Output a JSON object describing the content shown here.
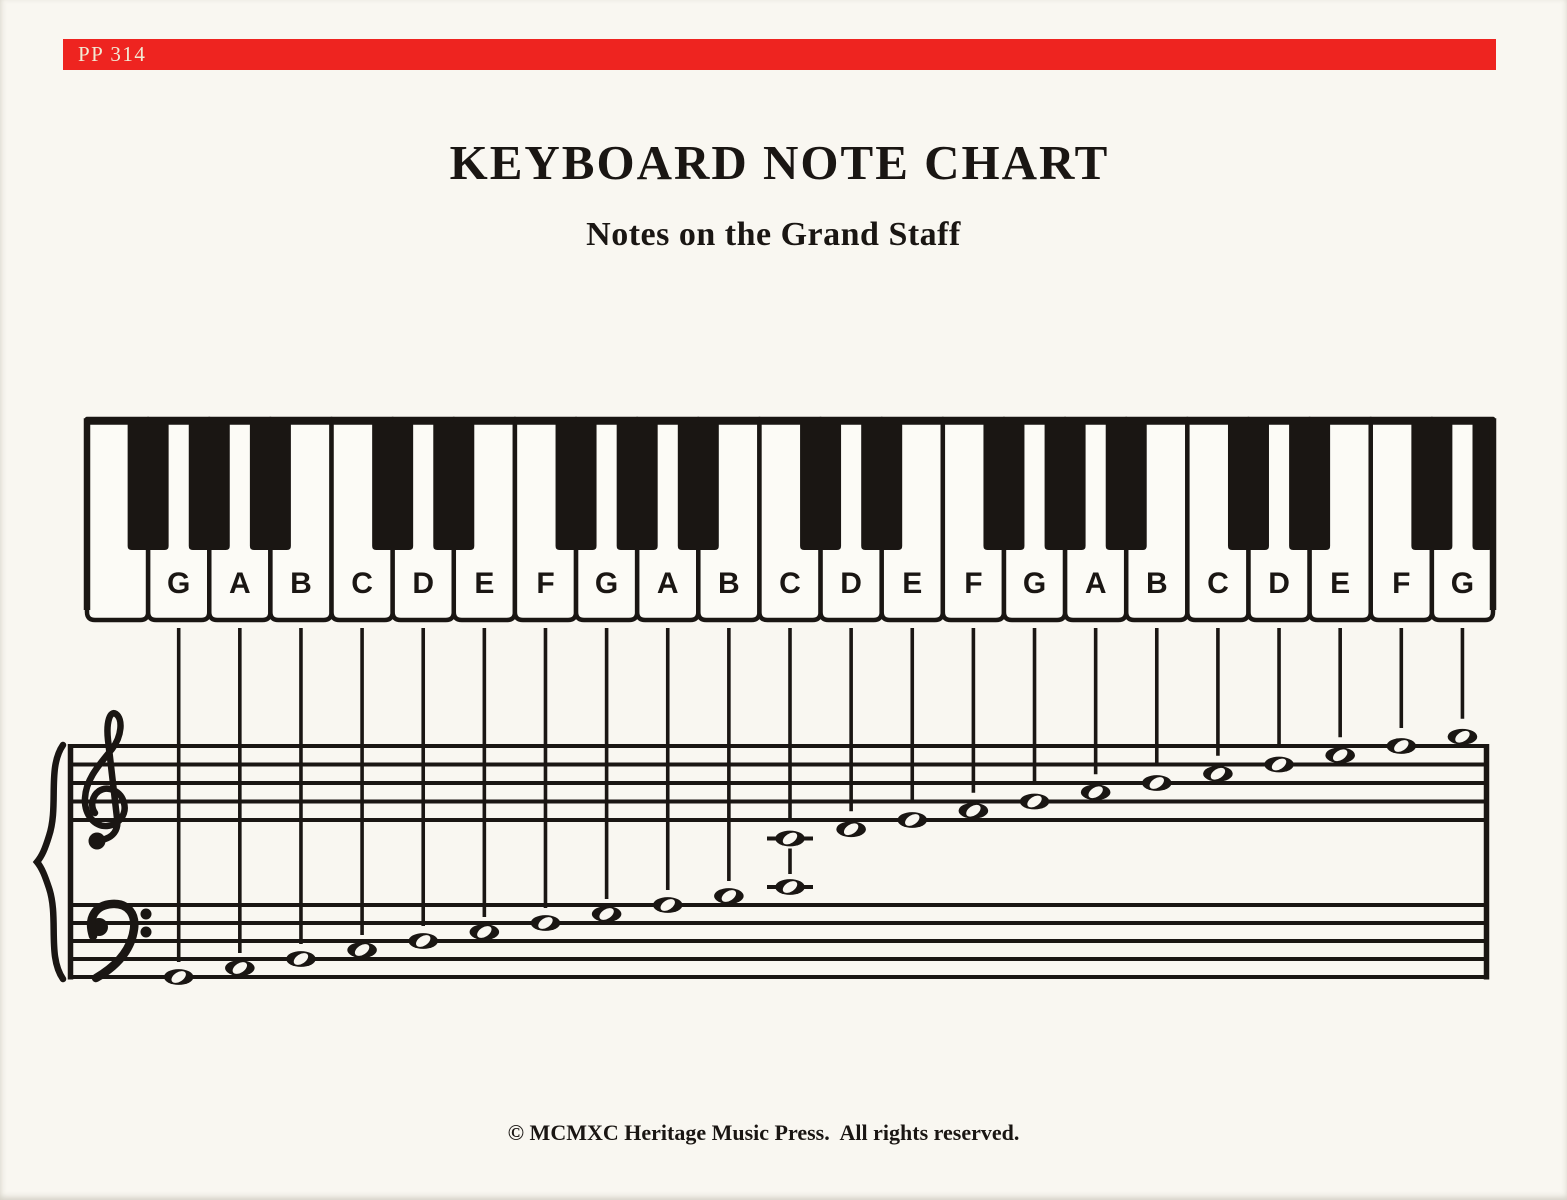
{
  "banner": {
    "code": "PP 314"
  },
  "header": {
    "title": "KEYBOARD NOTE CHART",
    "subtitle": "Notes on the Grand Staff"
  },
  "footer": {
    "copyright": "© MCMXC Heritage Music Press.  All rights reserved."
  },
  "colors": {
    "banner_red": "#ee2420",
    "banner_text": "#f1ead4",
    "ink": "#1a1613",
    "paper": "#f9f7f1",
    "key_white": "#fcfbf6"
  },
  "keyboard": {
    "white_keys": [
      "F",
      "G",
      "A",
      "B",
      "C",
      "D",
      "E",
      "F",
      "G",
      "A",
      "B",
      "C",
      "D",
      "E",
      "F",
      "G",
      "A",
      "B",
      "C",
      "D",
      "E",
      "F",
      "G"
    ],
    "labels_start_index": 1,
    "visible_labels": [
      "G",
      "A",
      "B",
      "C",
      "D",
      "E",
      "F",
      "G",
      "A",
      "B",
      "C",
      "D",
      "E",
      "F",
      "G",
      "A",
      "B",
      "C",
      "D",
      "E",
      "F",
      "G"
    ],
    "black_keys_follow": [
      "F",
      "G",
      "A",
      "C",
      "D"
    ],
    "partial_black_key_at_right_edge": true
  },
  "grand_staff": {
    "clefs": [
      "treble",
      "bass"
    ],
    "brace": true,
    "notes": [
      {
        "key_label_index": 0,
        "pitch": "G2",
        "clef": "bass",
        "steps_above_bottom_line": 0,
        "ledger": false
      },
      {
        "key_label_index": 1,
        "pitch": "A2",
        "clef": "bass",
        "steps_above_bottom_line": 1,
        "ledger": false
      },
      {
        "key_label_index": 2,
        "pitch": "B2",
        "clef": "bass",
        "steps_above_bottom_line": 2,
        "ledger": false
      },
      {
        "key_label_index": 3,
        "pitch": "C3",
        "clef": "bass",
        "steps_above_bottom_line": 3,
        "ledger": false
      },
      {
        "key_label_index": 4,
        "pitch": "D3",
        "clef": "bass",
        "steps_above_bottom_line": 4,
        "ledger": false
      },
      {
        "key_label_index": 5,
        "pitch": "E3",
        "clef": "bass",
        "steps_above_bottom_line": 5,
        "ledger": false
      },
      {
        "key_label_index": 6,
        "pitch": "F3",
        "clef": "bass",
        "steps_above_bottom_line": 6,
        "ledger": false
      },
      {
        "key_label_index": 7,
        "pitch": "G3",
        "clef": "bass",
        "steps_above_bottom_line": 7,
        "ledger": false
      },
      {
        "key_label_index": 8,
        "pitch": "A3",
        "clef": "bass",
        "steps_above_bottom_line": 8,
        "ledger": false
      },
      {
        "key_label_index": 9,
        "pitch": "B3",
        "clef": "bass",
        "steps_above_bottom_line": 9,
        "ledger": false
      },
      {
        "key_label_index": 10,
        "pitch": "C4",
        "clef": "bass",
        "steps_above_bottom_line": 10,
        "ledger": true
      },
      {
        "key_label_index": 10,
        "pitch": "C4",
        "clef": "treble",
        "steps_above_bottom_line": -2,
        "ledger": true
      },
      {
        "key_label_index": 11,
        "pitch": "D4",
        "clef": "treble",
        "steps_above_bottom_line": -1,
        "ledger": false
      },
      {
        "key_label_index": 12,
        "pitch": "E4",
        "clef": "treble",
        "steps_above_bottom_line": 0,
        "ledger": false
      },
      {
        "key_label_index": 13,
        "pitch": "F4",
        "clef": "treble",
        "steps_above_bottom_line": 1,
        "ledger": false
      },
      {
        "key_label_index": 14,
        "pitch": "G4",
        "clef": "treble",
        "steps_above_bottom_line": 2,
        "ledger": false
      },
      {
        "key_label_index": 15,
        "pitch": "A4",
        "clef": "treble",
        "steps_above_bottom_line": 3,
        "ledger": false
      },
      {
        "key_label_index": 16,
        "pitch": "B4",
        "clef": "treble",
        "steps_above_bottom_line": 4,
        "ledger": false
      },
      {
        "key_label_index": 17,
        "pitch": "C5",
        "clef": "treble",
        "steps_above_bottom_line": 5,
        "ledger": false
      },
      {
        "key_label_index": 18,
        "pitch": "D5",
        "clef": "treble",
        "steps_above_bottom_line": 6,
        "ledger": false
      },
      {
        "key_label_index": 19,
        "pitch": "E5",
        "clef": "treble",
        "steps_above_bottom_line": 7,
        "ledger": false
      },
      {
        "key_label_index": 20,
        "pitch": "F5",
        "clef": "treble",
        "steps_above_bottom_line": 8,
        "ledger": false
      },
      {
        "key_label_index": 21,
        "pitch": "G5",
        "clef": "treble",
        "steps_above_bottom_line": 9,
        "ledger": false
      }
    ]
  }
}
